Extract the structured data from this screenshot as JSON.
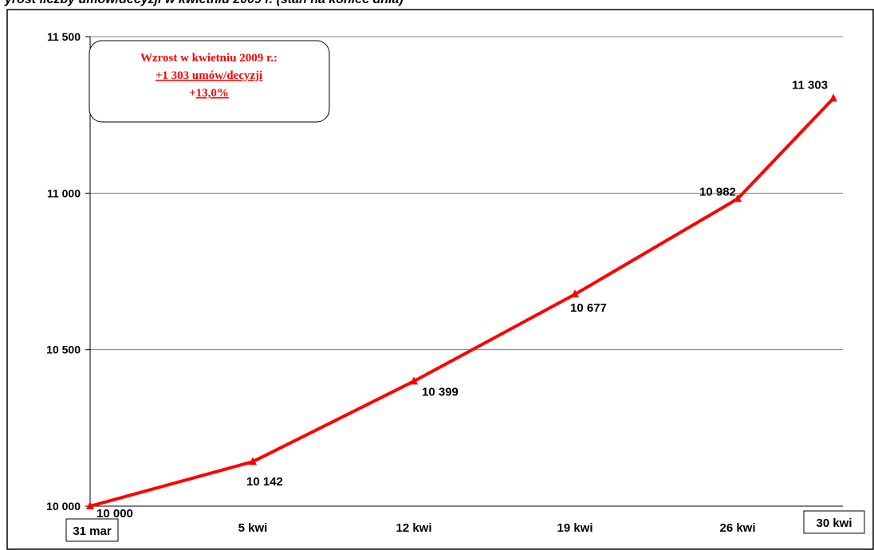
{
  "chart_data": {
    "type": "line",
    "categories": [
      "31 mar",
      "5 kwi",
      "12 kwi",
      "19 kwi",
      "26 kwi",
      "30 kwi"
    ],
    "values": [
      10000,
      10142,
      10399,
      10677,
      10982,
      11303
    ],
    "value_labels": [
      "10 000",
      "10 142",
      "10 399",
      "10 677",
      "10 982",
      "11 303"
    ],
    "ylim": [
      10000,
      11500
    ],
    "yticks": [
      10000,
      10500,
      11000,
      11500
    ],
    "ytick_labels": [
      "10 000",
      "10 500",
      "11 000",
      "11 500"
    ],
    "grid": true,
    "series_color": "#ff0000",
    "boxed_categories": [
      "31 mar",
      "30 kwi"
    ]
  },
  "annotation": {
    "line1": "Wzrost w kwietniu 2009 r.:",
    "line2": "+1 303 umów/decyzji",
    "line3_prefix": "+",
    "line3_value": "13,0%",
    "color": "#ff0000"
  },
  "top_cut_text": "yrost liczby umów/decyzji w kwietniu 2009 r. (stan na koniec dnia)"
}
